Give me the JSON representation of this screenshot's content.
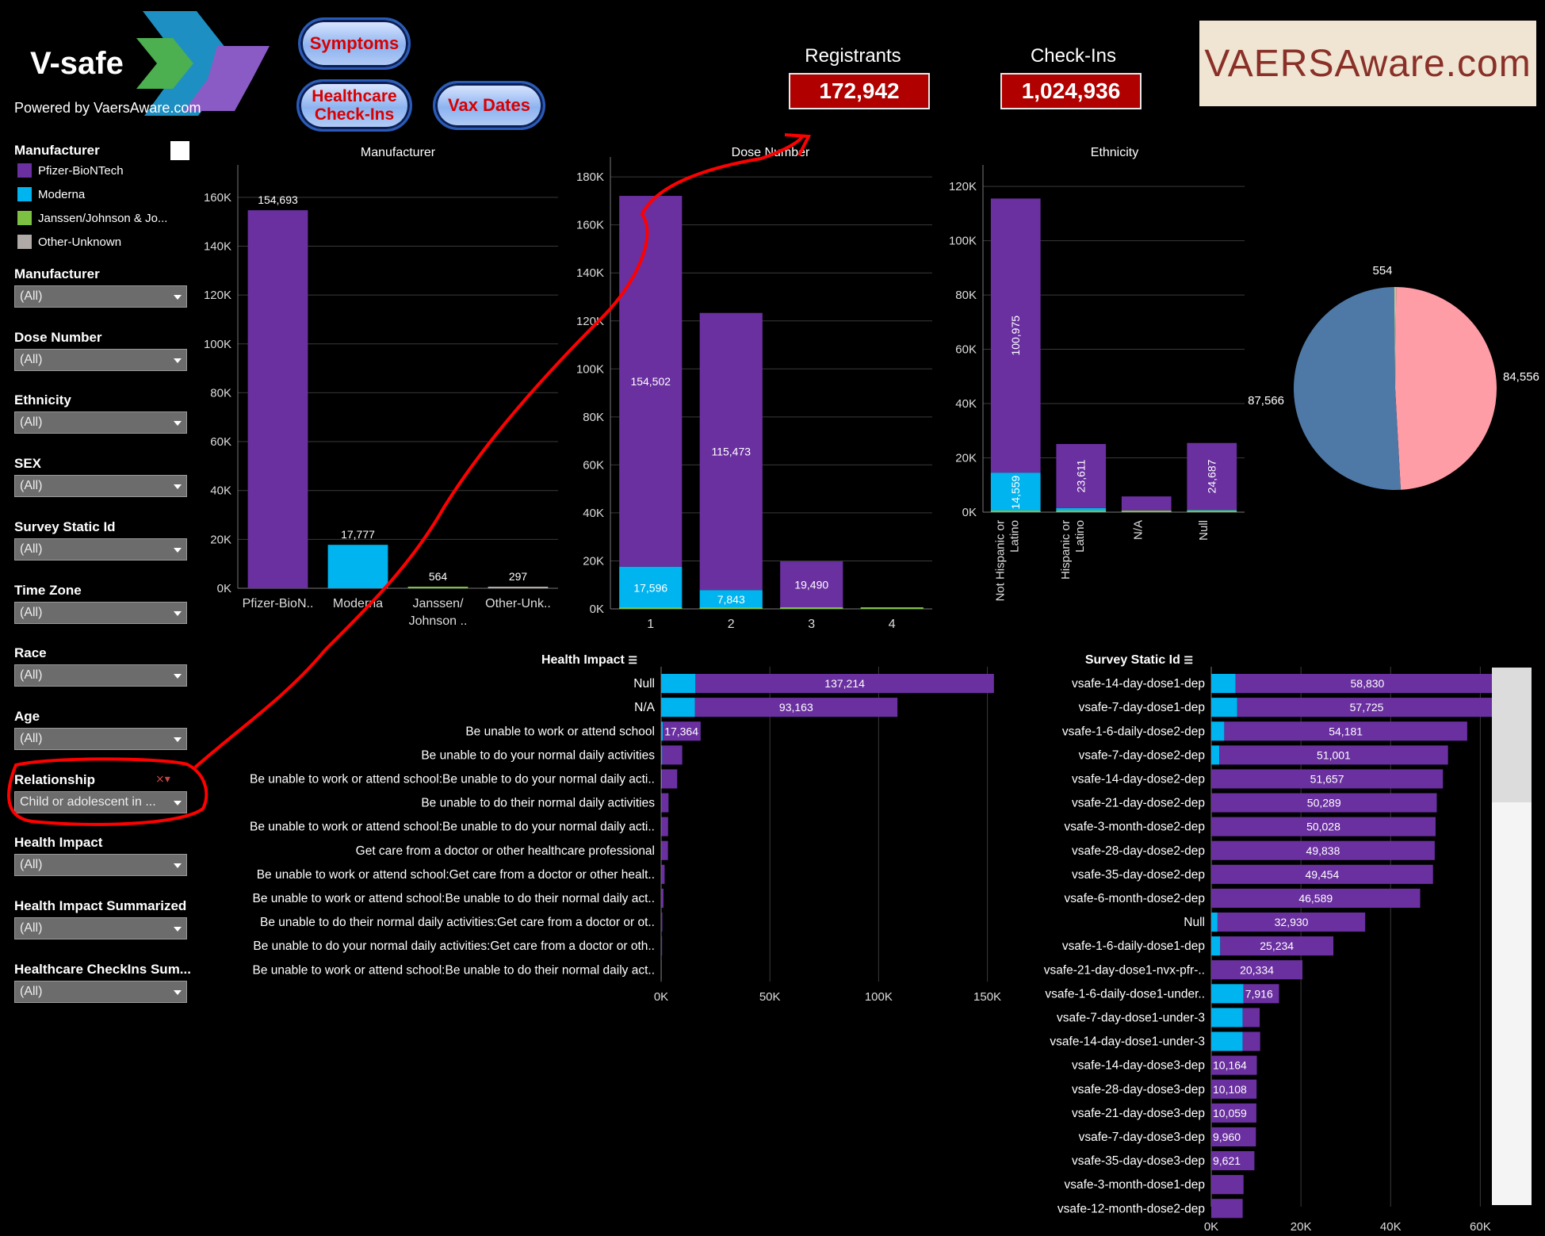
{
  "header": {
    "logo_title": "V-safe",
    "logo_subtitle": "Powered by VaersAware.com",
    "buttons": {
      "symptoms": "Symptoms",
      "healthcare_checkins": "Healthcare Check-Ins",
      "vax_dates": "Vax Dates"
    },
    "kpis": {
      "registrants_label": "Registrants",
      "registrants_value": "172,942",
      "checkins_label": "Check-Ins",
      "checkins_value": "1,024,936"
    },
    "brand_banner": "VAERSAware.com"
  },
  "colors": {
    "pfizer": "#6a30a0",
    "moderna": "#00b4f0",
    "janssen": "#7dc142",
    "other": "#b0aaa6",
    "annotation": "#ff0000",
    "kpi_bg": "#b00000",
    "pie_blue": "#4e79a7",
    "pie_pink": "#ff9da7"
  },
  "sidebar": {
    "legend_title": "Manufacturer",
    "legend_items": [
      {
        "label": "Pfizer-BioNTech",
        "color": "#6a30a0"
      },
      {
        "label": "Moderna",
        "color": "#00b4f0"
      },
      {
        "label": "Janssen/Johnson & Jo...",
        "color": "#7dc142"
      },
      {
        "label": "Other-Unknown",
        "color": "#b0aaa6"
      }
    ],
    "filters": [
      {
        "label": "Manufacturer",
        "value": "(All)"
      },
      {
        "label": "Dose Number",
        "value": "(All)"
      },
      {
        "label": "Ethnicity",
        "value": "(All)"
      },
      {
        "label": "SEX",
        "value": "(All)"
      },
      {
        "label": "Survey Static Id",
        "value": "(All)"
      },
      {
        "label": "Time Zone",
        "value": "(All)"
      },
      {
        "label": "Race",
        "value": "(All)"
      },
      {
        "label": "Age",
        "value": "(All)"
      },
      {
        "label": "Relationship",
        "value": "Child or adolescent in ..."
      },
      {
        "label": "Health Impact",
        "value": "(All)"
      },
      {
        "label": "Health Impact Summarized",
        "value": "(All)"
      },
      {
        "label": "Healthcare CheckIns Sum...",
        "value": "(All)"
      }
    ]
  },
  "chart_data": [
    {
      "type": "bar",
      "title": "Manufacturer",
      "categories": [
        "Pfizer-BioN..",
        "Moderna",
        "Janssen/ Johnson ..",
        "Other-Unk.."
      ],
      "values": [
        154693,
        17777,
        564,
        297
      ],
      "value_labels": [
        "154,693",
        "17,777",
        "564",
        "297"
      ],
      "ylim": [
        0,
        170000
      ],
      "y_ticks": [
        "0K",
        "20K",
        "40K",
        "60K",
        "80K",
        "100K",
        "120K",
        "140K",
        "160K"
      ]
    },
    {
      "type": "bar",
      "title": "Dose Number",
      "stacked": true,
      "categories": [
        "1",
        "2",
        "3",
        "4"
      ],
      "series": [
        {
          "name": "Moderna",
          "values": [
            17596,
            7843,
            300,
            0
          ]
        },
        {
          "name": "Pfizer-BioNTech",
          "values": [
            154502,
            115473,
            19490,
            0
          ]
        }
      ],
      "value_labels": {
        "Moderna": [
          "17,596",
          "7,843",
          "",
          ""
        ],
        "Pfizer-BioNTech": [
          "154,502",
          "115,473",
          "19,490",
          ""
        ]
      },
      "ylim": [
        0,
        185000
      ],
      "y_ticks": [
        "0K",
        "20K",
        "40K",
        "60K",
        "80K",
        "100K",
        "120K",
        "140K",
        "160K",
        "180K"
      ]
    },
    {
      "type": "bar",
      "title": "Ethnicity",
      "stacked": true,
      "categories": [
        "Not Hispanic or Latino",
        "Hispanic or Latino",
        "N/A",
        "Null"
      ],
      "series": [
        {
          "name": "Moderna",
          "values": [
            14559,
            1500,
            600,
            800
          ]
        },
        {
          "name": "Pfizer-BioNTech",
          "values": [
            100975,
            23611,
            5200,
            24687
          ]
        }
      ],
      "value_labels": {
        "Moderna": [
          "14,559",
          "",
          "",
          ""
        ],
        "Pfizer-BioNTech": [
          "100,975",
          "23,611",
          "",
          "24,687"
        ]
      },
      "ylim": [
        0,
        125000
      ],
      "y_ticks": [
        "0K",
        "20K",
        "40K",
        "60K",
        "80K",
        "100K",
        "120K"
      ]
    },
    {
      "type": "pie",
      "values": [
        84556,
        87566,
        554
      ],
      "labels": [
        "84,556",
        "87,566",
        "554"
      ],
      "colors": [
        "#ff9da7",
        "#4e79a7",
        "#b5c89c"
      ]
    },
    {
      "type": "bar",
      "orientation": "horizontal",
      "title": "Health Impact",
      "categories": [
        "Null",
        "N/A",
        "Be unable to work or attend school",
        "Be unable to do your normal daily activities",
        "Be unable to work or attend school:Be unable to do your normal daily acti..",
        "Be unable to do their normal daily activities",
        "Be unable to work or attend school:Be unable to do your normal daily acti..",
        "Get care from a doctor or other healthcare professional",
        "Be unable to work or attend school:Get care from a doctor or other healt..",
        "Be unable to work or attend school:Be unable to do their normal daily act..",
        "Be unable to do their normal daily activities:Get care from a doctor or ot..",
        "Be unable to do your normal daily activities:Get care from a doctor or oth..",
        "Be unable to work or attend school:Be unable to do their normal daily act.."
      ],
      "series": [
        {
          "name": "Moderna",
          "values": [
            15800,
            15500,
            800,
            500,
            400,
            200,
            200,
            150,
            100,
            80,
            50,
            40,
            30
          ]
        },
        {
          "name": "Pfizer-BioNTech",
          "values": [
            137214,
            93163,
            17364,
            9200,
            7000,
            3200,
            3000,
            3000,
            1500,
            1000,
            500,
            400,
            300
          ]
        }
      ],
      "value_labels": [
        "137,214",
        "93,163",
        "17,364"
      ],
      "xlim": [
        0,
        160000
      ],
      "x_ticks": [
        "0K",
        "50K",
        "100K",
        "150K"
      ]
    },
    {
      "type": "bar",
      "orientation": "horizontal",
      "title": "Survey Static Id",
      "categories": [
        "vsafe-14-day-dose1-dep",
        "vsafe-7-day-dose1-dep",
        "vsafe-1-6-daily-dose2-dep",
        "vsafe-7-day-dose2-dep",
        "vsafe-14-day-dose2-dep",
        "vsafe-21-day-dose2-dep",
        "vsafe-3-month-dose2-dep",
        "vsafe-28-day-dose2-dep",
        "vsafe-35-day-dose2-dep",
        "vsafe-6-month-dose2-dep",
        "Null",
        "vsafe-1-6-daily-dose1-dep",
        "vsafe-21-day-dose1-nvx-pfr-..",
        "vsafe-1-6-daily-dose1-under..",
        "vsafe-7-day-dose1-under-3",
        "vsafe-14-day-dose1-under-3",
        "vsafe-14-day-dose3-dep",
        "vsafe-28-day-dose3-dep",
        "vsafe-21-day-dose3-dep",
        "vsafe-7-day-dose3-dep",
        "vsafe-35-day-dose3-dep",
        "vsafe-3-month-dose1-dep",
        "vsafe-12-month-dose2-dep"
      ],
      "series": [
        {
          "name": "Moderna",
          "values": [
            5400,
            5800,
            2900,
            1800,
            0,
            0,
            0,
            0,
            0,
            0,
            1400,
            2000,
            0,
            7200,
            7000,
            7000,
            0,
            0,
            0,
            0,
            0,
            0,
            0
          ]
        },
        {
          "name": "Pfizer-BioNTech",
          "values": [
            58830,
            57725,
            54181,
            51001,
            51657,
            50289,
            50028,
            49838,
            49454,
            46589,
            32930,
            25234,
            20334,
            7916,
            3800,
            3900,
            10164,
            10108,
            10059,
            9960,
            9621,
            7200,
            7000
          ]
        }
      ],
      "value_labels": [
        "58,830",
        "57,725",
        "54,181",
        "51,001",
        "51,657",
        "50,289",
        "50,028",
        "49,838",
        "49,454",
        "46,589",
        "32,930",
        "25,234",
        "20,334",
        "7,916",
        "",
        "",
        "10,164",
        "10,108",
        "10,059",
        "9,960",
        "9,621",
        "",
        ""
      ],
      "xlim": [
        0,
        64000
      ],
      "x_ticks": [
        "0K",
        "20K",
        "40K",
        "60K"
      ]
    }
  ]
}
